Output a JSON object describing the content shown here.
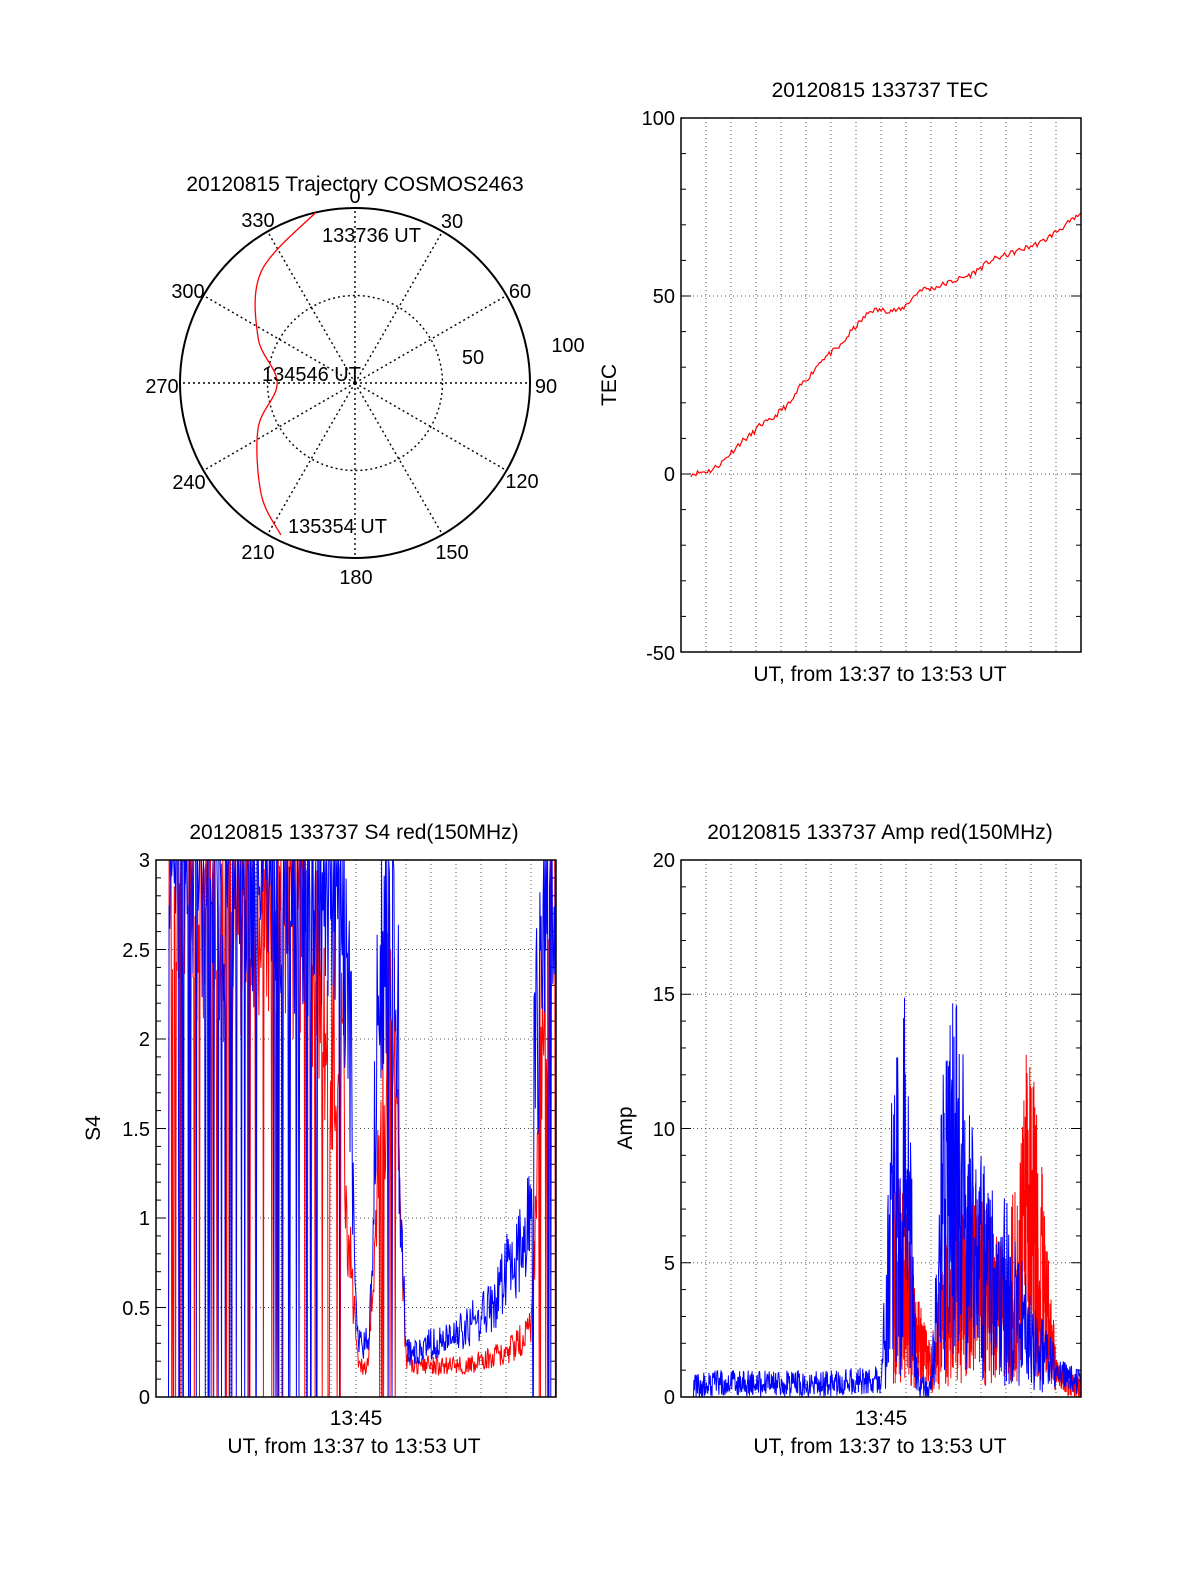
{
  "chart_data": [
    {
      "type": "polar",
      "title": "20120815 Trajectory COSMOS2463",
      "azimuth_labels": [
        "0",
        "30",
        "60",
        "90",
        "120",
        "150",
        "180",
        "210",
        "240",
        "270",
        "300",
        "330"
      ],
      "radial_labels": [
        "50",
        "100"
      ],
      "grid": true,
      "trajectory": {
        "color": "#ff0000",
        "points": [
          {
            "az": 347,
            "el": 0
          },
          {
            "az": 320,
            "el": 15
          },
          {
            "az": 295,
            "el": 35
          },
          {
            "az": 270,
            "el": 50
          },
          {
            "az": 245,
            "el": 35
          },
          {
            "az": 220,
            "el": 15
          },
          {
            "az": 206,
            "el": 3
          }
        ],
        "labels": [
          {
            "text": "133736 UT",
            "az": 347,
            "el": 0
          },
          {
            "text": "134546 UT",
            "az": 270,
            "el": 88
          },
          {
            "text": "135354 UT",
            "az": 206,
            "el": 3
          }
        ]
      }
    },
    {
      "type": "line",
      "title": "20120815 133737 TEC",
      "xlabel": "UT, from 13:37 to 13:53 UT",
      "ylabel": "TEC",
      "xlim": [
        0,
        16
      ],
      "ylim": [
        -50,
        100
      ],
      "yticks": [
        -50,
        0,
        50,
        100
      ],
      "grid": true,
      "series": [
        {
          "color": "#ff0000",
          "x": [
            0.4,
            0.8,
            1.2,
            1.6,
            2.0,
            2.4,
            2.8,
            3.2,
            3.6,
            4.0,
            4.4,
            4.8,
            5.2,
            5.6,
            6.0,
            6.4,
            6.8,
            7.2,
            7.6,
            8.0,
            8.4,
            8.8,
            9.2,
            9.6,
            10.0,
            10.4,
            10.8,
            11.2,
            11.6,
            12.0,
            12.4,
            12.8,
            13.2,
            13.6,
            14.0,
            14.4,
            14.8,
            15.2,
            15.6,
            16.0
          ],
          "y": [
            0,
            0.5,
            1,
            3,
            6,
            9,
            11,
            14,
            15,
            18,
            20,
            25,
            28,
            32,
            34,
            36,
            40,
            43,
            46,
            46,
            46,
            46,
            49,
            52,
            52,
            53,
            54,
            55,
            56,
            58,
            60,
            61,
            62,
            63,
            64,
            65,
            67,
            69,
            71,
            73
          ]
        }
      ]
    },
    {
      "type": "line",
      "title": "20120815 133737 S4 red(150MHz)",
      "xlabel": "UT, from 13:37 to 13:53 UT",
      "ylabel": "S4",
      "xlim": [
        0,
        16
      ],
      "ylim": [
        0,
        3
      ],
      "yticks": [
        0,
        0.5,
        1,
        1.5,
        2,
        2.5,
        3
      ],
      "xticks": [
        {
          "x": 8,
          "label": "13:45"
        }
      ],
      "grid": true,
      "series": [
        {
          "color": "#ff0000",
          "x": [
            0.5,
            1.5,
            2.5,
            3.5,
            4.5,
            5.5,
            6.5,
            7.5,
            8.1,
            8.5,
            9.0,
            9.5,
            10.0,
            10.5,
            11.0,
            11.5,
            12.0,
            12.5,
            13.0,
            13.5,
            14.0,
            14.5,
            15.0,
            15.5,
            16.0
          ],
          "y": [
            2.8,
            2.6,
            2.4,
            2.5,
            2.6,
            2.4,
            2.2,
            1.3,
            0.15,
            0.2,
            1.5,
            1.8,
            0.2,
            0.18,
            0.18,
            0.17,
            0.18,
            0.18,
            0.2,
            0.22,
            0.25,
            0.3,
            0.4,
            2.0,
            2.7
          ]
        },
        {
          "color": "#0000ff",
          "x": [
            0.5,
            1.5,
            2.5,
            3.5,
            4.5,
            5.5,
            6.5,
            7.5,
            8.1,
            8.5,
            9.0,
            9.5,
            10.0,
            10.5,
            11.0,
            11.5,
            12.0,
            12.5,
            13.0,
            13.5,
            14.0,
            14.5,
            15.0,
            15.5,
            16.0
          ],
          "y": [
            2.9,
            2.7,
            2.6,
            2.6,
            2.7,
            2.6,
            2.5,
            2.5,
            0.3,
            0.3,
            2.2,
            2.4,
            0.25,
            0.25,
            0.3,
            0.3,
            0.35,
            0.4,
            0.45,
            0.5,
            0.7,
            0.8,
            1.0,
            2.6,
            2.8
          ]
        }
      ]
    },
    {
      "type": "line",
      "title": "20120815 133737 Amp red(150MHz)",
      "xlabel": "UT, from 13:37 to 13:53 UT",
      "ylabel": "Amp",
      "xlim": [
        0,
        16
      ],
      "ylim": [
        0,
        20
      ],
      "yticks": [
        0,
        5,
        10,
        15,
        20
      ],
      "xticks": [
        {
          "x": 8,
          "label": "13:45"
        }
      ],
      "grid": true,
      "series": [
        {
          "color": "#ff0000",
          "x": [
            8.5,
            9.0,
            9.5,
            10.0,
            10.5,
            11.0,
            11.5,
            12.0,
            12.5,
            13.0,
            13.5,
            14.0,
            14.5,
            15.0,
            15.5,
            16.0
          ],
          "y": [
            5,
            4,
            2,
            1,
            3,
            4,
            4.5,
            4,
            3.5,
            3,
            5,
            8,
            4,
            1,
            0.5,
            0.3
          ]
        },
        {
          "color": "#0000ff",
          "x": [
            0.5,
            1.0,
            2.0,
            3.0,
            4.0,
            5.0,
            6.0,
            7.0,
            8.0,
            8.5,
            9.0,
            9.5,
            10.0,
            10.5,
            11.0,
            11.5,
            12.0,
            12.5,
            13.0,
            13.5,
            14.0,
            14.5,
            15.0,
            15.5,
            16.0
          ],
          "y": [
            0.4,
            0.5,
            0.5,
            0.5,
            0.5,
            0.5,
            0.5,
            0.6,
            0.6,
            7,
            8,
            0.3,
            0.3,
            7,
            8,
            6,
            5,
            4,
            4,
            3,
            2,
            1.5,
            1,
            0.8,
            0.5
          ]
        }
      ]
    }
  ]
}
